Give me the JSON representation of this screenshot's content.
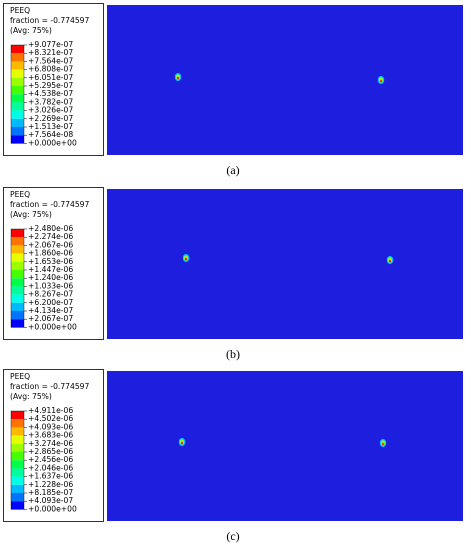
{
  "panels": [
    {
      "legend": {
        "variable": "PEEQ",
        "fraction": "fraction = -0.774597",
        "average": "(Avg: 75%)",
        "levels": [
          "+9.077e-07",
          "+8.321e-07",
          "+7.564e-07",
          "+6.808e-07",
          "+6.051e-07",
          "+5.295e-07",
          "+4.538e-07",
          "+3.782e-07",
          "+3.026e-07",
          "+2.269e-07",
          "+1.513e-07",
          "+7.564e-08",
          "+0.000e+00"
        ]
      },
      "caption": "(a)"
    },
    {
      "legend": {
        "variable": "PEEQ",
        "fraction": "fraction = -0.774597",
        "average": "(Avg: 75%)",
        "levels": [
          "+2.480e-06",
          "+2.274e-06",
          "+2.067e-06",
          "+1.860e-06",
          "+1.653e-06",
          "+1.447e-06",
          "+1.240e-06",
          "+1.033e-06",
          "+8.267e-07",
          "+6.200e-07",
          "+4.134e-07",
          "+2.067e-07",
          "+0.000e+00"
        ]
      },
      "caption": "(b)"
    },
    {
      "legend": {
        "variable": "PEEQ",
        "fraction": "fraction = -0.774597",
        "average": "(Avg: 75%)",
        "levels": [
          "+4.911e-06",
          "+4.502e-06",
          "+4.093e-06",
          "+3.683e-06",
          "+3.274e-06",
          "+2.865e-06",
          "+2.456e-06",
          "+2.046e-06",
          "+1.637e-06",
          "+1.228e-06",
          "+8.185e-07",
          "+4.093e-07",
          "+0.000e+00"
        ]
      },
      "caption": "(c)"
    }
  ]
}
